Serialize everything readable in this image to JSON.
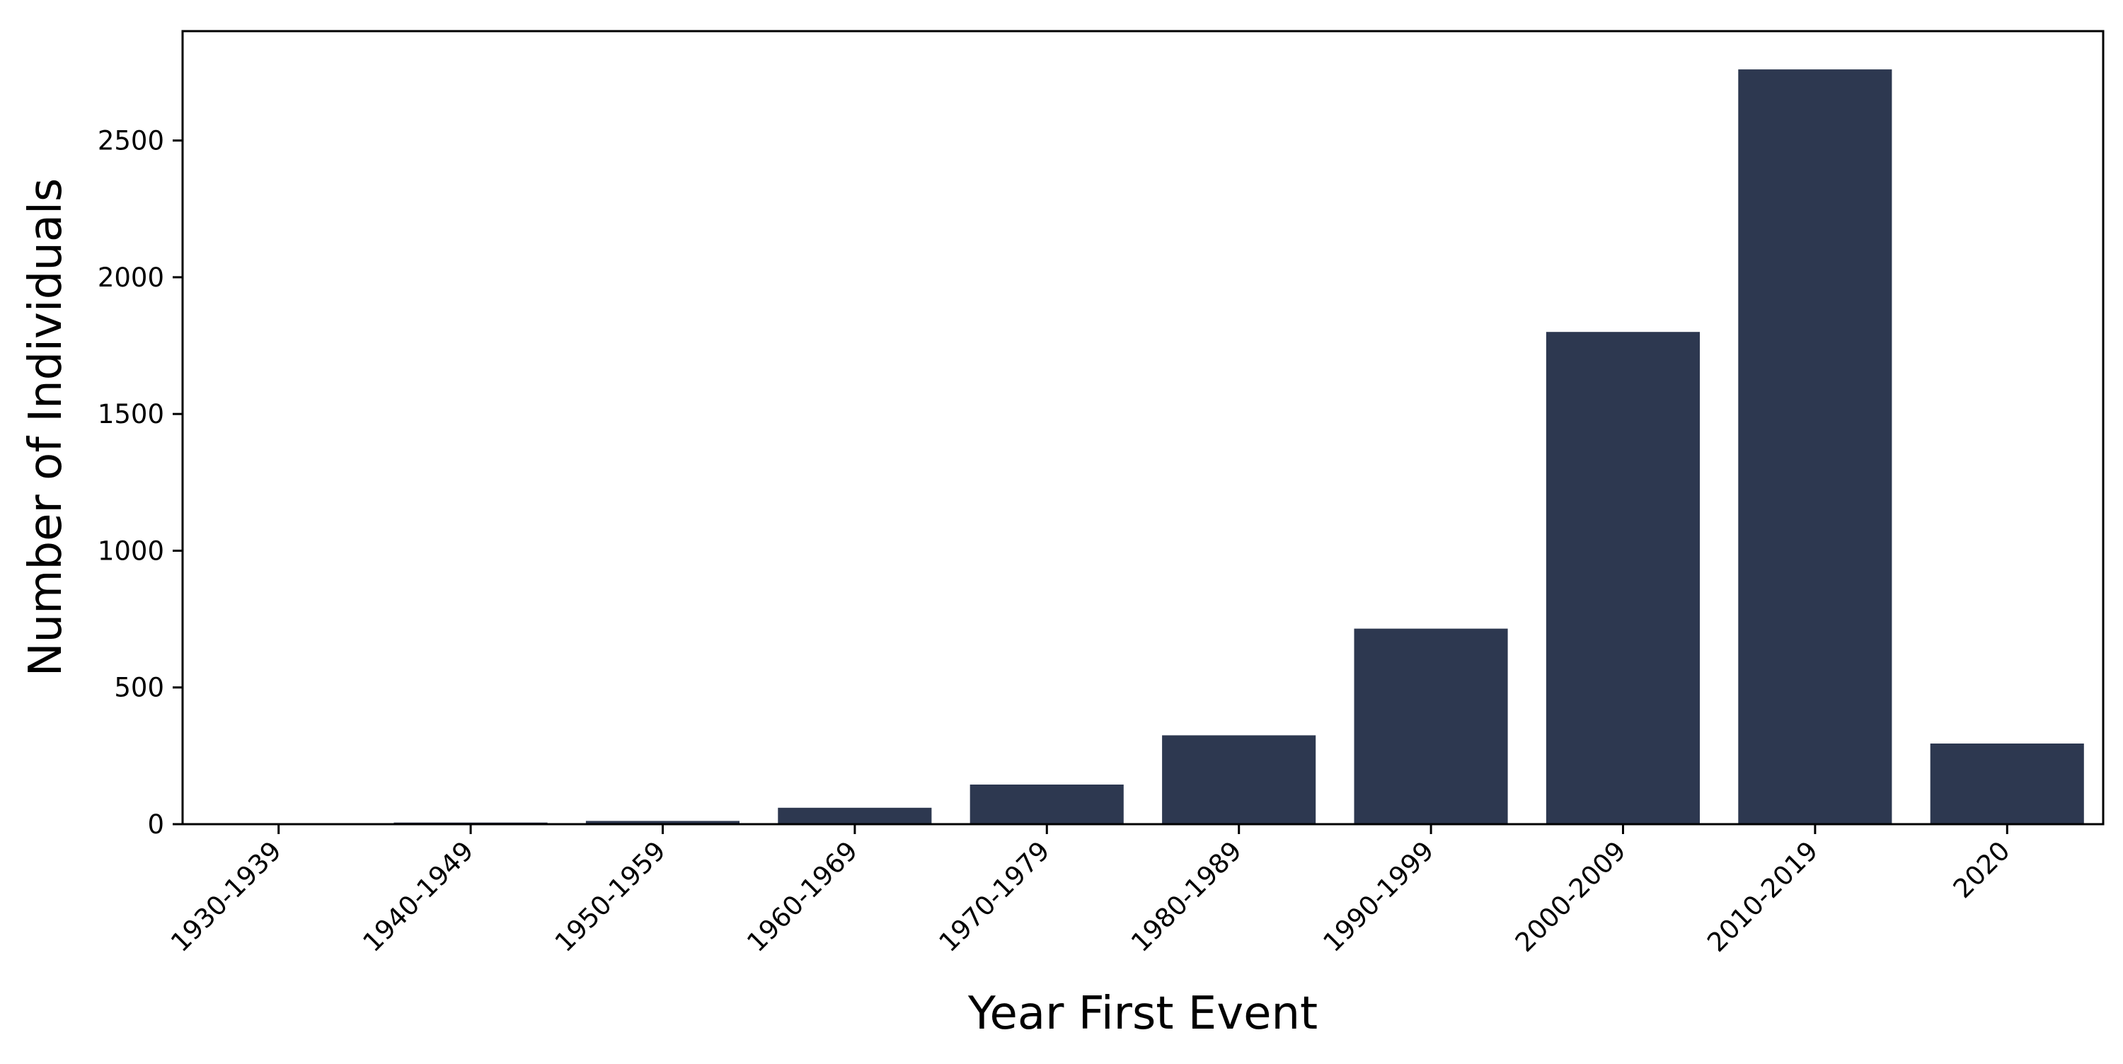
{
  "chart_data": {
    "type": "bar",
    "xlabel": "Year First Event",
    "ylabel": "Number of Individuals",
    "categories": [
      "1930-1939",
      "1940-1949",
      "1950-1959",
      "1960-1969",
      "1970-1979",
      "1980-1989",
      "1990-1999",
      "2000-2009",
      "2010-2019",
      "2020"
    ],
    "values": [
      2,
      6,
      12,
      60,
      145,
      325,
      715,
      1800,
      2760,
      295
    ],
    "ylim": [
      0,
      2900
    ],
    "yticks": [
      0,
      500,
      1000,
      1500,
      2000,
      2500
    ],
    "bar_color": "#2d3850",
    "grid": false,
    "legend": "none"
  }
}
